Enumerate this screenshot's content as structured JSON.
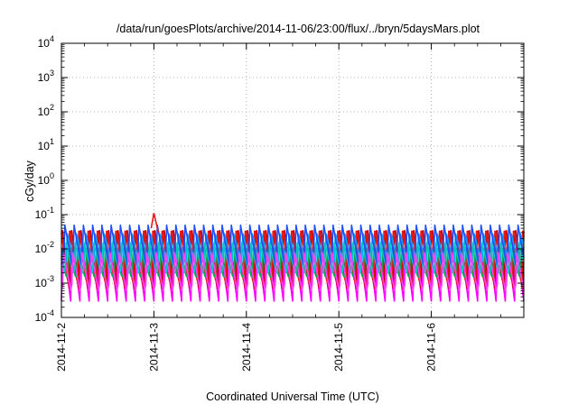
{
  "chart_data": {
    "type": "line",
    "title": "/data/run/goesPlots/archive/2014-11-06/23:00/flux/../bryn/5daysMars.plot",
    "xlabel": "Coordinated Universal Time (UTC)",
    "ylabel": "cGy/day",
    "y_scale": "log",
    "ylim": [
      0.0001,
      10000
    ],
    "xlim": [
      "2014-11-02",
      "2014-11-07"
    ],
    "x_tick_labels": [
      "2014-11-2",
      "2014-11-3",
      "2014-11-4",
      "2014-11-5",
      "2014-11-6"
    ],
    "y_ticks": [
      {
        "base": "10",
        "exp": "-4"
      },
      {
        "base": "10",
        "exp": "-3"
      },
      {
        "base": "10",
        "exp": "-2"
      },
      {
        "base": "10",
        "exp": "-1"
      },
      {
        "base": "10",
        "exp": "0"
      },
      {
        "base": "10",
        "exp": "1"
      },
      {
        "base": "10",
        "exp": "2"
      },
      {
        "base": "10",
        "exp": "3"
      },
      {
        "base": "10",
        "exp": "4"
      }
    ],
    "grid": true,
    "legend": "none",
    "pattern": {
      "description_values": "sawtooth: fast rise to peak then exponential decay, about 10 cycles per day",
      "cycles_per_day": 10.0,
      "rise_fraction": 0.15
    },
    "series": [
      {
        "color": "#ff00ff",
        "peak": 0.02,
        "trough": 0.0003
      },
      {
        "color": "#c80000",
        "peak": 0.06,
        "trough": 0.0006
      },
      {
        "color": "#e61919",
        "peak": 0.05,
        "trough": 0.0008
      },
      {
        "color": "#00b050",
        "peak": 0.012,
        "trough": 0.0012
      },
      {
        "color": "#00a0ff",
        "peak": 0.03,
        "trough": 0.003
      },
      {
        "color": "#00c8c8",
        "peak": 0.015,
        "trough": 0.0015
      },
      {
        "color": "#1e50ff",
        "peak": 0.05,
        "trough": 0.0025
      },
      {
        "color": "#ff40ff",
        "peak": 0.008,
        "trough": 0.00045
      }
    ],
    "spike": {
      "x": "2014-11-03",
      "y": 0.11
    }
  }
}
